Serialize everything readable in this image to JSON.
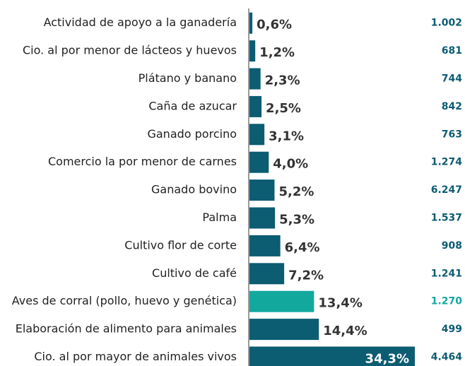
{
  "chart_data": {
    "type": "bar",
    "orientation": "horizontal",
    "categories": [
      "Actividad de apoyo a la ganadería",
      "Cio. al por menor de lácteos y huevos",
      "Plátano y banano",
      "Caña de azucar",
      "Ganado porcino",
      "Comercio la por menor de carnes",
      "Ganado bovino",
      "Palma",
      "Cultivo flor de corte",
      "Cultivo de café",
      "Aves de corral (pollo, huevo y genética)",
      "Elaboración de alimento para animales",
      "Cio. al por mayor de animales vivos"
    ],
    "values": [
      0.6,
      1.2,
      2.3,
      2.5,
      3.1,
      4.0,
      5.2,
      5.3,
      6.4,
      7.2,
      13.4,
      14.4,
      34.3
    ],
    "value_labels": [
      "0,6%",
      "1,2%",
      "2,3%",
      "2,5%",
      "3,1%",
      "4,0%",
      "5,2%",
      "5,3%",
      "6,4%",
      "7,2%",
      "13,4%",
      "14,4%",
      "34,3%"
    ],
    "counts": [
      1002,
      681,
      744,
      842,
      763,
      1274,
      6247,
      1537,
      908,
      1241,
      1270,
      499,
      4464
    ],
    "count_labels": [
      "1.002",
      "681",
      "744",
      "842",
      "763",
      "1.274",
      "6.247",
      "1.537",
      "908",
      "1.241",
      "1.270",
      "499",
      "4.464"
    ],
    "colors": [
      "#0c5c72",
      "#0c5c72",
      "#0c5c72",
      "#0c5c72",
      "#0c5c72",
      "#0c5c72",
      "#0c5c72",
      "#0c5c72",
      "#0c5c72",
      "#0c5c72",
      "#13a89e",
      "#0c5c72",
      "#0c5c72"
    ]
  }
}
